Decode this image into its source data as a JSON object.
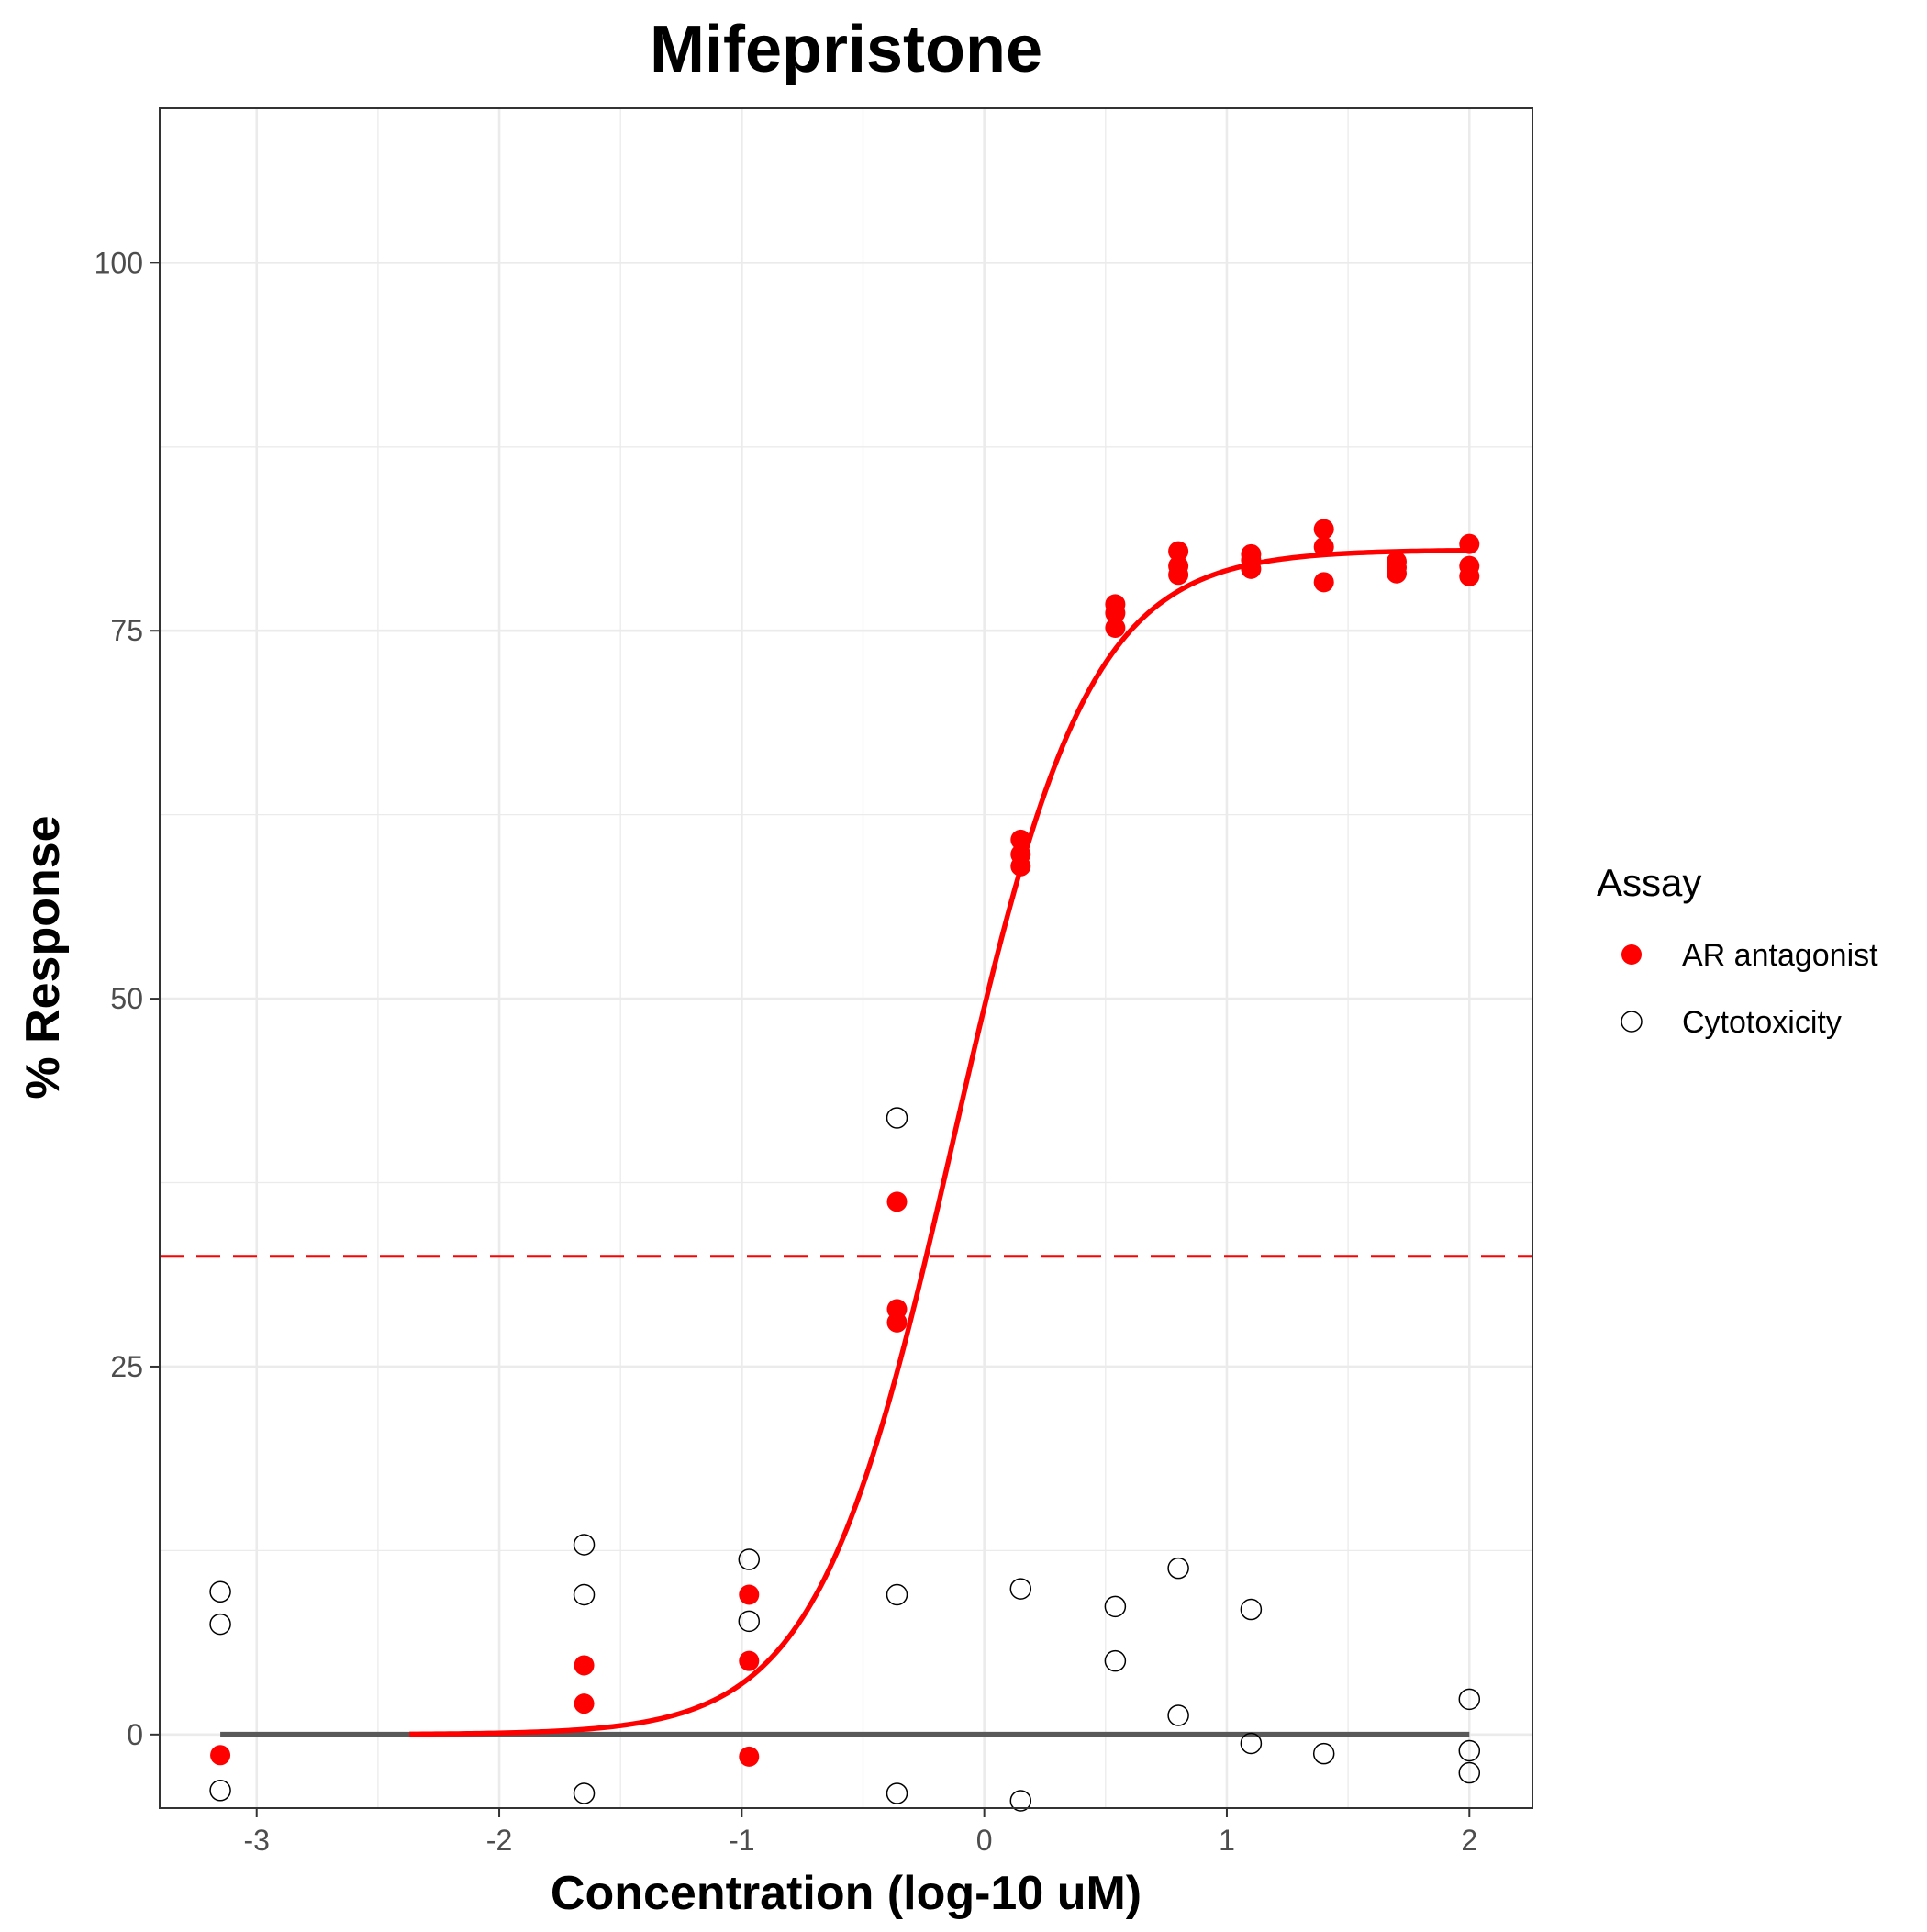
{
  "chart_data": {
    "type": "scatter",
    "title": "Mifepristone",
    "xlabel": "Concentration (log-10 uM)",
    "ylabel": "% Response",
    "xlim": [
      -3.4,
      2.26
    ],
    "ylim": [
      110.5,
      -5
    ],
    "y_reversed": true,
    "x_ticks": [
      -3,
      -2,
      -1,
      0,
      1,
      2
    ],
    "x_tick_labels": [
      "-3",
      "-2",
      "-1",
      "0",
      "1",
      "2"
    ],
    "y_ticks": [
      0,
      25,
      50,
      75,
      100
    ],
    "y_tick_labels": [
      "0",
      "25",
      "50",
      "75",
      "100"
    ],
    "grid": true,
    "legend": {
      "title": "Assay",
      "placement": "right",
      "entries": [
        "AR antagonist",
        "Cytotoxicity"
      ]
    },
    "colors": {
      "ar_antagonist": "#ff0000",
      "cytotoxicity_stroke": "#000000",
      "fit_line": "#ff0000",
      "cytotoxicity_fit": "#595959",
      "threshold_line": "#ff0000",
      "grid": "#ebebeb"
    },
    "threshold_line": {
      "y": 32.5,
      "style": "dashed",
      "color": "#ff0000"
    },
    "fits": [
      {
        "series": "AR antagonist",
        "model": "hill",
        "bottom": 0,
        "top": 80.5,
        "log_ac50": -0.13,
        "hill_slope": 1.55,
        "x_range": [
          -2.37,
          2.0
        ]
      },
      {
        "series": "Cytotoxicity",
        "model": "constant",
        "value": 0,
        "x_range": [
          -3.15,
          2.0
        ]
      }
    ],
    "series": [
      {
        "name": "AR antagonist",
        "marker": "filled-circle",
        "points": [
          [
            -3.15,
            -1.4
          ],
          [
            -1.65,
            2.1
          ],
          [
            -1.65,
            4.7
          ],
          [
            -0.97,
            -1.5
          ],
          [
            -0.97,
            5.0
          ],
          [
            -0.97,
            9.5
          ],
          [
            -0.36,
            28.0
          ],
          [
            -0.36,
            28.9
          ],
          [
            -0.36,
            36.2
          ],
          [
            0.15,
            59.0
          ],
          [
            0.15,
            59.8
          ],
          [
            0.15,
            60.8
          ],
          [
            0.54,
            75.2
          ],
          [
            0.54,
            76.2
          ],
          [
            0.54,
            76.8
          ],
          [
            0.8,
            78.8
          ],
          [
            0.8,
            79.4
          ],
          [
            0.8,
            80.4
          ],
          [
            1.1,
            79.2
          ],
          [
            1.1,
            79.8
          ],
          [
            1.1,
            80.2
          ],
          [
            1.4,
            78.3
          ],
          [
            1.4,
            80.7
          ],
          [
            1.4,
            81.9
          ],
          [
            1.7,
            78.9
          ],
          [
            1.7,
            79.3
          ],
          [
            1.7,
            79.7
          ],
          [
            2.0,
            78.7
          ],
          [
            2.0,
            79.4
          ],
          [
            2.0,
            80.9
          ]
        ]
      },
      {
        "name": "Cytotoxicity",
        "marker": "open-circle",
        "points": [
          [
            -3.15,
            -3.8
          ],
          [
            -3.15,
            7.5
          ],
          [
            -3.15,
            9.7
          ],
          [
            -1.65,
            -4.0
          ],
          [
            -1.65,
            9.5
          ],
          [
            -1.65,
            12.9
          ],
          [
            -0.97,
            7.7
          ],
          [
            -0.97,
            11.9
          ],
          [
            -0.36,
            -4.0
          ],
          [
            -0.36,
            9.5
          ],
          [
            -0.36,
            41.9
          ],
          [
            0.15,
            -4.5
          ],
          [
            0.15,
            9.9
          ],
          [
            0.54,
            5.0
          ],
          [
            0.54,
            8.7
          ],
          [
            0.8,
            1.3
          ],
          [
            0.8,
            11.3
          ],
          [
            1.1,
            -0.6
          ],
          [
            1.1,
            8.5
          ],
          [
            1.4,
            -1.3
          ],
          [
            2.0,
            -2.6
          ],
          [
            2.0,
            -1.1
          ],
          [
            2.0,
            2.4
          ]
        ]
      }
    ]
  }
}
